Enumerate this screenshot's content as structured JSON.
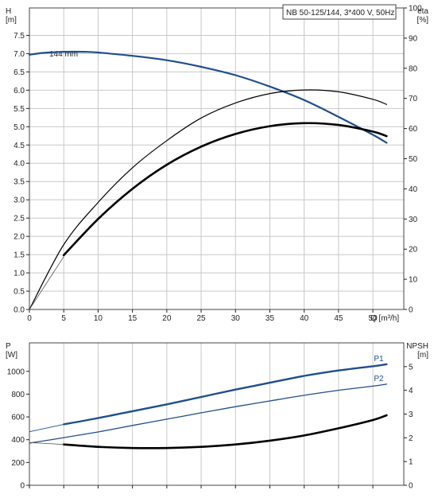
{
  "chart_data": [
    {
      "type": "line",
      "title": "NB 50-125/144, 3*400 V, 50Hz",
      "xlabel": "Q [m³/h]",
      "ylabel_left_name": "H",
      "ylabel_left_unit": "[m]",
      "ylabel_right_name": "eta",
      "ylabel_right_unit": "[%]",
      "xlim": [
        0,
        54.5
      ],
      "ylim_left": [
        0,
        8.25
      ],
      "ylim_right": [
        0,
        100
      ],
      "x_ticks": [
        "0",
        "5",
        "10",
        "15",
        "20",
        "25",
        "30",
        "35",
        "40",
        "45",
        "50"
      ],
      "y_left_ticks": [
        "0.0",
        "0.5",
        "1.0",
        "1.5",
        "2.0",
        "2.5",
        "3.0",
        "3.5",
        "4.0",
        "4.5",
        "5.0",
        "5.5",
        "6.0",
        "6.5",
        "7.0",
        "7.5"
      ],
      "y_right_ticks": [
        "0",
        "10",
        "20",
        "30",
        "40",
        "50",
        "60",
        "70",
        "80",
        "90",
        "100"
      ],
      "grid": true,
      "curve_label": "144 mm",
      "series": [
        {
          "name": "144 mm",
          "axis": "left",
          "color": "#1f4e8c",
          "points": [
            [
              0,
              6.97
            ],
            [
              2,
              7.02
            ],
            [
              5,
              7.05
            ],
            [
              8,
              7.05
            ],
            [
              10,
              7.03
            ],
            [
              15,
              6.94
            ],
            [
              20,
              6.82
            ],
            [
              25,
              6.64
            ],
            [
              30,
              6.41
            ],
            [
              35,
              6.1
            ],
            [
              40,
              5.73
            ],
            [
              45,
              5.27
            ],
            [
              50,
              4.78
            ],
            [
              52,
              4.56
            ]
          ]
        },
        {
          "name": "",
          "axis": "right",
          "color": "#000000",
          "width": 1.2,
          "points": [
            [
              0,
              0
            ],
            [
              5,
              21.5
            ],
            [
              10,
              35.5
            ],
            [
              15,
              47
            ],
            [
              20,
              56
            ],
            [
              25,
              63.5
            ],
            [
              30,
              68.5
            ],
            [
              35,
              71.6
            ],
            [
              40,
              72.8
            ],
            [
              45,
              72.2
            ],
            [
              50,
              69.7
            ],
            [
              52,
              68
            ]
          ]
        },
        {
          "name": "",
          "axis": "right",
          "color": "#000000",
          "width": 2.6,
          "points": [
            [
              5,
              18
            ],
            [
              10,
              30
            ],
            [
              15,
              40
            ],
            [
              20,
              48
            ],
            [
              25,
              54
            ],
            [
              30,
              58.2
            ],
            [
              35,
              60.8
            ],
            [
              40,
              61.8
            ],
            [
              45,
              61.2
            ],
            [
              50,
              59
            ],
            [
              52,
              57.5
            ]
          ]
        },
        {
          "name": "",
          "axis": "right",
          "color": "#555555",
          "width": 0.8,
          "points": [
            [
              0,
              0
            ],
            [
              5,
              17.5
            ]
          ]
        }
      ]
    },
    {
      "type": "line",
      "xlabel": "",
      "ylabel_left_name": "P",
      "ylabel_left_unit": "[W]",
      "ylabel_right_name": "NPSH",
      "ylabel_right_unit": "[m]",
      "xlim": [
        0,
        54.5
      ],
      "ylim_left": [
        0,
        1250
      ],
      "ylim_right": [
        0,
        6.0
      ],
      "y_left_ticks": [
        "0",
        "200",
        "400",
        "600",
        "800",
        "1000"
      ],
      "y_right_ticks": [
        "0",
        "1",
        "2",
        "3",
        "4",
        "5"
      ],
      "grid": true,
      "series": [
        {
          "name": "P1",
          "axis": "left",
          "color": "#1f4e8c",
          "width": 2.4,
          "points": [
            [
              5,
              535
            ],
            [
              10,
              590
            ],
            [
              15,
              650
            ],
            [
              20,
              710
            ],
            [
              25,
              775
            ],
            [
              30,
              840
            ],
            [
              35,
              900
            ],
            [
              40,
              960
            ],
            [
              45,
              1008
            ],
            [
              50,
              1045
            ],
            [
              52,
              1062
            ]
          ]
        },
        {
          "name": "",
          "axis": "left",
          "color": "#1f4e8c",
          "width": 0.9,
          "points": [
            [
              0,
              470
            ],
            [
              5,
              535
            ]
          ]
        },
        {
          "name": "P2",
          "axis": "left",
          "color": "#1f4e8c",
          "width": 1.3,
          "points": [
            [
              0,
              370
            ],
            [
              5,
              418
            ],
            [
              10,
              468
            ],
            [
              15,
              525
            ],
            [
              20,
              580
            ],
            [
              25,
              636
            ],
            [
              30,
              690
            ],
            [
              35,
              740
            ],
            [
              40,
              790
            ],
            [
              45,
              834
            ],
            [
              50,
              870
            ],
            [
              52,
              888
            ]
          ]
        },
        {
          "name": "",
          "axis": "right",
          "color": "#000000",
          "width": 2.6,
          "points": [
            [
              5,
              1.72
            ],
            [
              10,
              1.62
            ],
            [
              15,
              1.57
            ],
            [
              20,
              1.57
            ],
            [
              25,
              1.62
            ],
            [
              30,
              1.72
            ],
            [
              35,
              1.88
            ],
            [
              40,
              2.1
            ],
            [
              45,
              2.4
            ],
            [
              50,
              2.75
            ],
            [
              52,
              2.95
            ]
          ]
        },
        {
          "name": "",
          "axis": "right",
          "color": "#555555",
          "width": 0.8,
          "points": [
            [
              0,
              1.8
            ],
            [
              5,
              1.72
            ]
          ]
        }
      ]
    }
  ]
}
